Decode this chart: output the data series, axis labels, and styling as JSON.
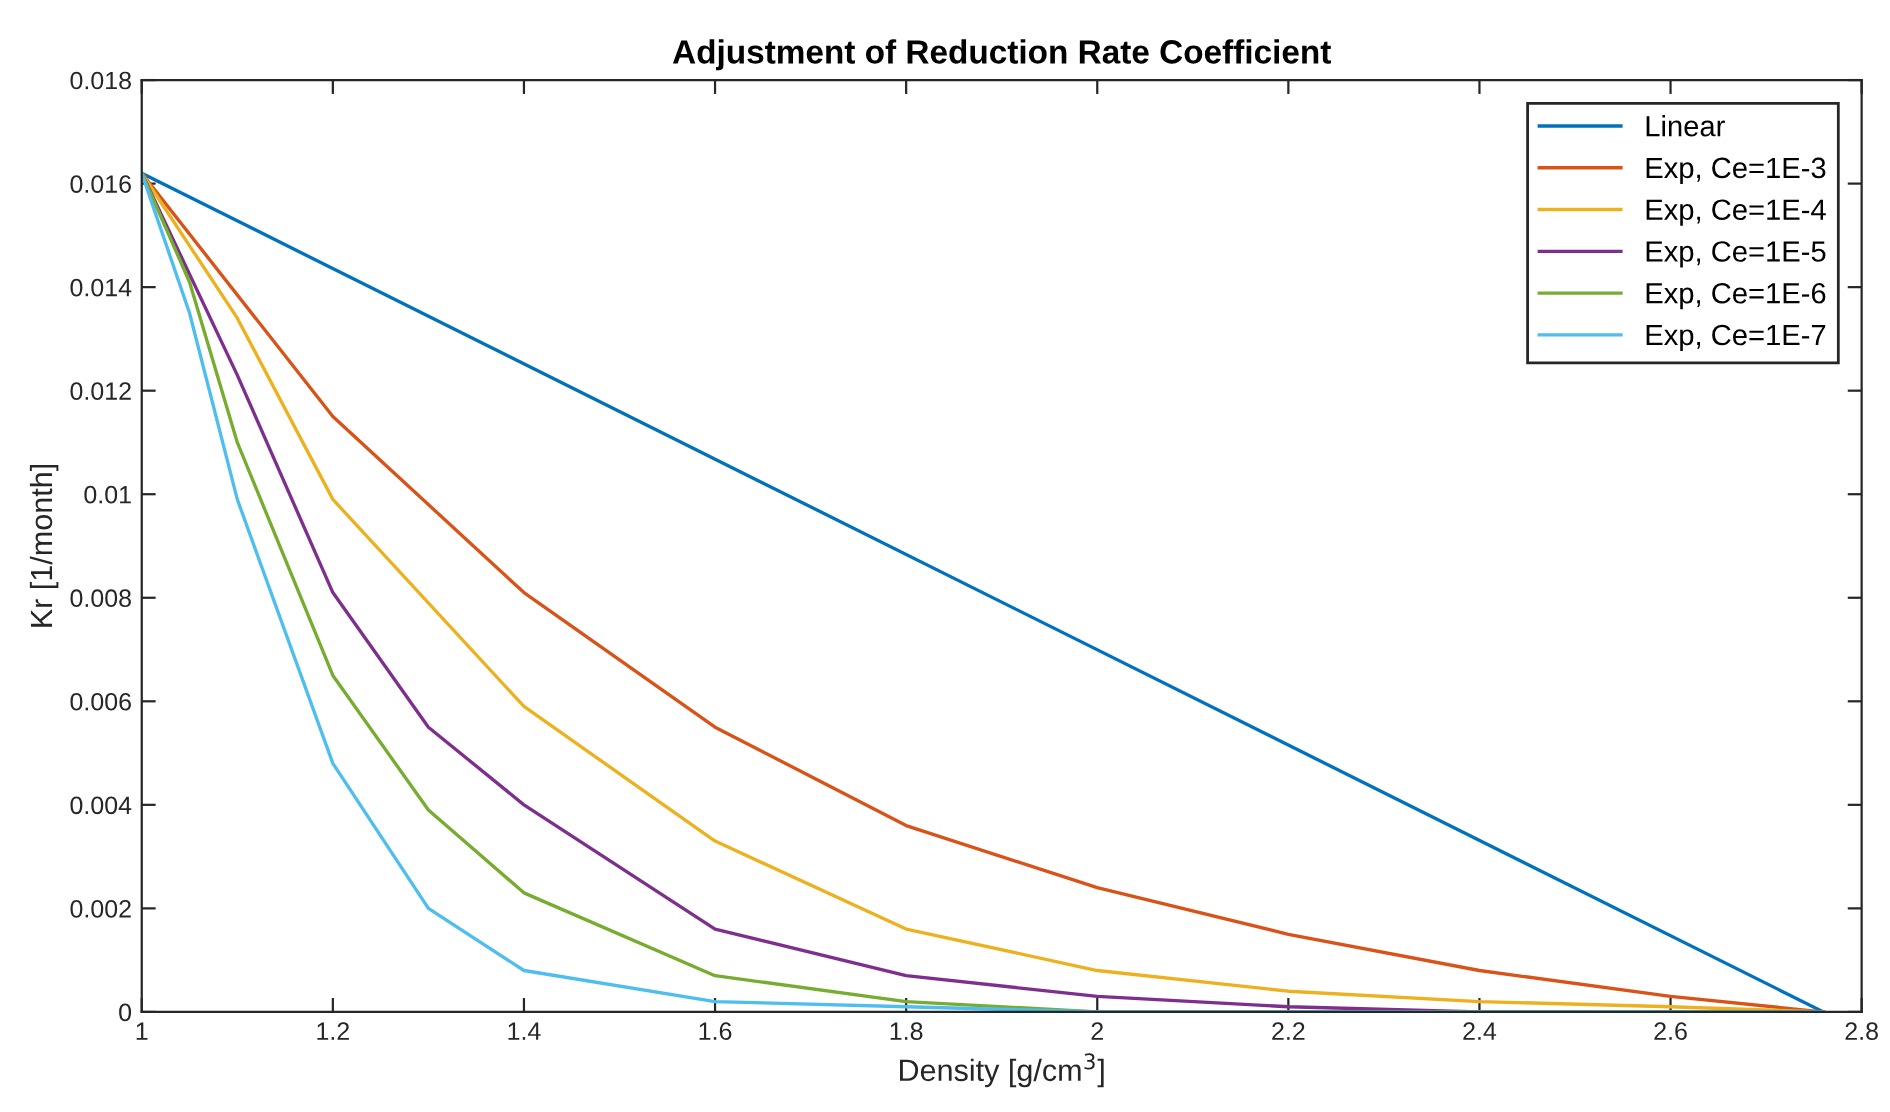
{
  "chart_data": {
    "type": "line",
    "title": "Adjustment of Reduction Rate Coefficient",
    "xlabel": "Density [g/cm$^{3}$]",
    "ylabel": "Kr [1/month]",
    "xlim": [
      1,
      2.8
    ],
    "xticks": [
      1,
      1.2,
      1.4,
      1.6,
      1.8,
      2,
      2.2,
      2.4,
      2.6,
      2.8
    ],
    "ylim": [
      0,
      0.018
    ],
    "yticks": [
      0,
      0.002,
      0.004,
      0.006,
      0.008,
      0.01,
      0.012,
      0.014,
      0.016,
      0.018
    ],
    "grid": false,
    "legend": "top right",
    "marker": "none",
    "line_style": "solid",
    "series": [
      {
        "name": "Linear",
        "color": "#0072bd",
        "x": [
          1,
          2.76
        ],
        "values": [
          0.0162,
          0
        ]
      },
      {
        "name": "Exp, Ce=1E-3",
        "color": "#d95319",
        "x": [
          1,
          1.2,
          1.4,
          1.6,
          1.8,
          2,
          2.2,
          2.4,
          2.6,
          2.76
        ],
        "values": [
          0.0162,
          0.0115,
          0.0081,
          0.0055,
          0.0036,
          0.0024,
          0.0015,
          0.0008,
          0.0003,
          0
        ]
      },
      {
        "name": "Exp, Ce=1E-4",
        "color": "#edb120",
        "x": [
          1,
          1.1,
          1.2,
          1.4,
          1.6,
          1.8,
          2,
          2.2,
          2.4,
          2.6,
          2.76
        ],
        "values": [
          0.0162,
          0.0134,
          0.0099,
          0.0059,
          0.0033,
          0.0016,
          0.0008,
          0.0004,
          0.0002,
          0.0001,
          0
        ]
      },
      {
        "name": "Exp, Ce=1E-5",
        "color": "#7e2f8e",
        "x": [
          1,
          1.1,
          1.2,
          1.3,
          1.4,
          1.6,
          1.8,
          2,
          2.2,
          2.4,
          2.76
        ],
        "values": [
          0.0162,
          0.0123,
          0.0081,
          0.0055,
          0.004,
          0.0016,
          0.0007,
          0.0003,
          0.0001,
          0,
          0
        ]
      },
      {
        "name": "Exp, Ce=1E-6",
        "color": "#77ac30",
        "x": [
          1,
          1.05,
          1.1,
          1.2,
          1.3,
          1.4,
          1.6,
          1.8,
          2,
          2.76
        ],
        "values": [
          0.0162,
          0.0141,
          0.011,
          0.0065,
          0.0039,
          0.0023,
          0.0007,
          0.0002,
          0,
          0
        ]
      },
      {
        "name": "Exp, Ce=1E-7",
        "color": "#4dbeee",
        "x": [
          1,
          1.05,
          1.1,
          1.2,
          1.3,
          1.4,
          1.6,
          1.8,
          2,
          2.76
        ],
        "values": [
          0.0162,
          0.0135,
          0.0099,
          0.0048,
          0.002,
          0.0008,
          0.0002,
          0.0001,
          0,
          0
        ]
      }
    ]
  }
}
